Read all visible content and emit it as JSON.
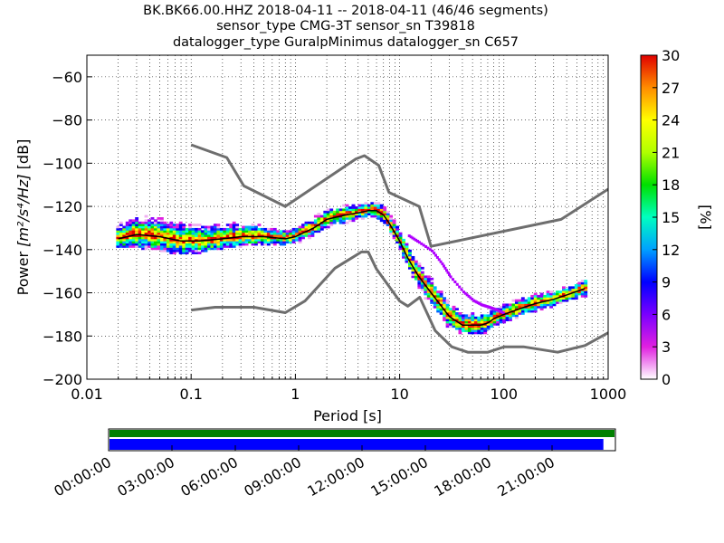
{
  "chart_data": {
    "type": "heatmap",
    "title": [
      "BK.BK66.00.HHZ   2018-04-11 -- 2018-04-11  (46/46 segments)",
      "sensor_type CMG-3T sensor_sn T39818",
      "datalogger_type GuralpMinimus datalogger_sn C657"
    ],
    "xlabel": "Period [s]",
    "ylabel_prefix": "Power ",
    "ylabel_unit": "[m²/s⁴/Hz]",
    "ylabel_suffix": " [dB]",
    "x_scale": "log",
    "xlim": [
      0.01,
      1000
    ],
    "ylim": [
      -200,
      -50
    ],
    "x_ticks": [
      0.01,
      0.1,
      1,
      10,
      100,
      1000
    ],
    "x_tick_labels": [
      "0.01",
      "0.1",
      "1",
      "10",
      "100",
      "1000"
    ],
    "y_ticks": [
      -200,
      -180,
      -160,
      -140,
      -120,
      -100,
      -80,
      -60
    ],
    "y_tick_labels": [
      "−200",
      "−180",
      "−160",
      "−140",
      "−120",
      "−100",
      "−80",
      "−60"
    ],
    "grid": "dotted",
    "colorbar": {
      "label": "[%]",
      "range": [
        0,
        30
      ],
      "ticks": [
        0,
        3,
        6,
        9,
        12,
        15,
        18,
        21,
        24,
        27,
        30
      ],
      "tick_labels": [
        "0",
        "3",
        "6",
        "9",
        "12",
        "15",
        "18",
        "21",
        "24",
        "27",
        "30"
      ]
    },
    "noise_model_high": {
      "period": [
        0.1,
        0.22,
        0.32,
        0.8,
        3.8,
        4.6,
        6.3,
        7.9,
        15.4,
        20,
        354,
        1000
      ],
      "power": [
        -91.5,
        -97.4,
        -110.5,
        -120,
        -98,
        -96.5,
        -101,
        -113.5,
        -120,
        -138.5,
        -126,
        -112
      ]
    },
    "noise_model_low": {
      "period": [
        0.1,
        0.17,
        0.4,
        0.8,
        1.24,
        2.4,
        4.3,
        5,
        6,
        10,
        12,
        15.6,
        21.9,
        31.6,
        45,
        70,
        101,
        154,
        328,
        600,
        1000
      ],
      "power": [
        -168,
        -166.7,
        -166.7,
        -169.2,
        -163.7,
        -148.6,
        -141.1,
        -141.1,
        -149,
        -163.8,
        -166.2,
        -162.1,
        -177.5,
        -185,
        -187.5,
        -187.5,
        -185,
        -185,
        -187.5,
        -184.4,
        -178.5
      ]
    },
    "mean_curve": {
      "period": [
        0.02,
        0.03,
        0.05,
        0.08,
        0.12,
        0.2,
        0.3,
        0.5,
        0.8,
        1,
        1.5,
        2,
        3,
        4,
        5,
        6,
        7,
        8,
        10,
        12,
        15,
        20,
        25,
        30,
        40,
        50,
        60,
        70,
        80,
        100,
        150,
        200,
        300,
        400,
        600
      ],
      "power": [
        -135,
        -133,
        -134,
        -136,
        -136,
        -135,
        -134,
        -134,
        -135,
        -134,
        -130,
        -126,
        -124,
        -123,
        -122,
        -122,
        -124,
        -128,
        -136,
        -144,
        -152,
        -160,
        -166,
        -171,
        -175,
        -175,
        -175,
        -174,
        -172,
        -170,
        -167,
        -165,
        -163,
        -161,
        -158
      ]
    },
    "psd_bands": [
      {
        "period": 0.02,
        "low": -139,
        "high": -128
      },
      {
        "period": 0.03,
        "low": -139,
        "high": -124
      },
      {
        "period": 0.05,
        "low": -140,
        "high": -125
      },
      {
        "period": 0.08,
        "low": -142,
        "high": -127
      },
      {
        "period": 0.12,
        "low": -141,
        "high": -128
      },
      {
        "period": 0.2,
        "low": -139,
        "high": -127
      },
      {
        "period": 0.3,
        "low": -138,
        "high": -127
      },
      {
        "period": 0.5,
        "low": -138,
        "high": -129
      },
      {
        "period": 0.8,
        "low": -138,
        "high": -131
      },
      {
        "period": 1,
        "low": -137,
        "high": -130
      },
      {
        "period": 1.5,
        "low": -134,
        "high": -126
      },
      {
        "period": 2,
        "low": -130,
        "high": -122
      },
      {
        "period": 3,
        "low": -128,
        "high": -120
      },
      {
        "period": 4,
        "low": -126,
        "high": -119
      },
      {
        "period": 5,
        "low": -125,
        "high": -118
      },
      {
        "period": 6,
        "low": -126,
        "high": -118
      },
      {
        "period": 7,
        "low": -128,
        "high": -120
      },
      {
        "period": 8,
        "low": -132,
        "high": -124
      },
      {
        "period": 10,
        "low": -141,
        "high": -131
      },
      {
        "period": 12,
        "low": -149,
        "high": -139
      },
      {
        "period": 15,
        "low": -157,
        "high": -146
      },
      {
        "period": 20,
        "low": -166,
        "high": -154
      },
      {
        "period": 25,
        "low": -172,
        "high": -160
      },
      {
        "period": 30,
        "low": -177,
        "high": -165
      },
      {
        "period": 40,
        "low": -180,
        "high": -170
      },
      {
        "period": 50,
        "low": -180,
        "high": -170
      },
      {
        "period": 60,
        "low": -179,
        "high": -170
      },
      {
        "period": 70,
        "low": -178,
        "high": -169
      },
      {
        "period": 80,
        "low": -176,
        "high": -168
      },
      {
        "period": 100,
        "low": -174,
        "high": -166
      },
      {
        "period": 150,
        "low": -171,
        "high": -163
      },
      {
        "period": 200,
        "low": -169,
        "high": -161
      },
      {
        "period": 300,
        "low": -166,
        "high": -159
      },
      {
        "period": 400,
        "low": -164,
        "high": -157
      },
      {
        "period": 600,
        "low": -162,
        "high": -154
      }
    ],
    "outlier_trail": {
      "period": [
        12,
        15,
        20,
        25,
        30,
        40,
        50,
        60,
        70,
        80,
        100
      ],
      "power": [
        -134,
        -137,
        -141,
        -147,
        -153,
        -160,
        -164,
        -166,
        -167,
        -168,
        -170
      ]
    },
    "timeline": {
      "labels": [
        "00:00:00",
        "03:00:00",
        "06:00:00",
        "09:00:00",
        "12:00:00",
        "15:00:00",
        "18:00:00",
        "21:00:00"
      ],
      "green_coverage": [
        0,
        1
      ],
      "blue_coverage": [
        0,
        0.978
      ],
      "colors": {
        "green": "#008000",
        "blue": "#0000ff"
      }
    },
    "colors": {
      "noise_model": "#6e6e6e",
      "mean_curve": "#000000"
    }
  }
}
